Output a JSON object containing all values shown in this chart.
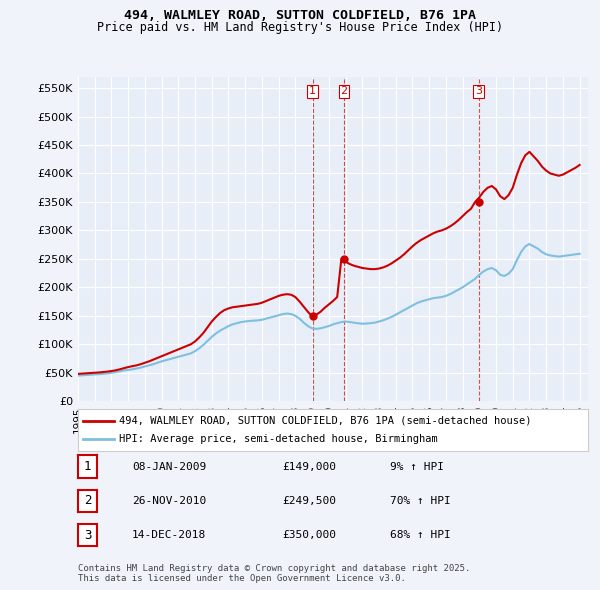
{
  "title_line1": "494, WALMLEY ROAD, SUTTON COLDFIELD, B76 1PA",
  "title_line2": "Price paid vs. HM Land Registry's House Price Index (HPI)",
  "ylabel_ticks": [
    "£0",
    "£50K",
    "£100K",
    "£150K",
    "£200K",
    "£250K",
    "£300K",
    "£350K",
    "£400K",
    "£450K",
    "£500K",
    "£550K"
  ],
  "ytick_values": [
    0,
    50000,
    100000,
    150000,
    200000,
    250000,
    300000,
    350000,
    400000,
    450000,
    500000,
    550000
  ],
  "ylim": [
    0,
    570000
  ],
  "xlim_start": 1995.0,
  "xlim_end": 2025.5,
  "background_color": "#f0f4fa",
  "plot_bg_color": "#e8eef8",
  "grid_color": "#ffffff",
  "red_line_color": "#cc0000",
  "blue_line_color": "#7fbfdf",
  "sale_marker_color": "#cc0000",
  "vline_color": "#cc0000",
  "transaction_dates_num": [
    2009.03,
    2010.91,
    2018.96
  ],
  "transaction_prices": [
    149000,
    249500,
    350000
  ],
  "transaction_labels": [
    "1",
    "2",
    "3"
  ],
  "legend_label_red": "494, WALMLEY ROAD, SUTTON COLDFIELD, B76 1PA (semi-detached house)",
  "legend_label_blue": "HPI: Average price, semi-detached house, Birmingham",
  "table_rows": [
    {
      "num": "1",
      "date": "08-JAN-2009",
      "price": "£149,000",
      "change": "9% ↑ HPI"
    },
    {
      "num": "2",
      "date": "26-NOV-2010",
      "price": "£249,500",
      "change": "70% ↑ HPI"
    },
    {
      "num": "3",
      "date": "14-DEC-2018",
      "price": "£350,000",
      "change": "68% ↑ HPI"
    }
  ],
  "footer_text": "Contains HM Land Registry data © Crown copyright and database right 2025.\nThis data is licensed under the Open Government Licence v3.0.",
  "hpi_years": [
    1995,
    1995.25,
    1995.5,
    1995.75,
    1996,
    1996.25,
    1996.5,
    1996.75,
    1997,
    1997.25,
    1997.5,
    1997.75,
    1998,
    1998.25,
    1998.5,
    1998.75,
    1999,
    1999.25,
    1999.5,
    1999.75,
    2000,
    2000.25,
    2000.5,
    2000.75,
    2001,
    2001.25,
    2001.5,
    2001.75,
    2002,
    2002.25,
    2002.5,
    2002.75,
    2003,
    2003.25,
    2003.5,
    2003.75,
    2004,
    2004.25,
    2004.5,
    2004.75,
    2005,
    2005.25,
    2005.5,
    2005.75,
    2006,
    2006.25,
    2006.5,
    2006.75,
    2007,
    2007.25,
    2007.5,
    2007.75,
    2008,
    2008.25,
    2008.5,
    2008.75,
    2009,
    2009.25,
    2009.5,
    2009.75,
    2010,
    2010.25,
    2010.5,
    2010.75,
    2011,
    2011.25,
    2011.5,
    2011.75,
    2012,
    2012.25,
    2012.5,
    2012.75,
    2013,
    2013.25,
    2013.5,
    2013.75,
    2014,
    2014.25,
    2014.5,
    2014.75,
    2015,
    2015.25,
    2015.5,
    2015.75,
    2016,
    2016.25,
    2016.5,
    2016.75,
    2017,
    2017.25,
    2017.5,
    2017.75,
    2018,
    2018.25,
    2018.5,
    2018.75,
    2019,
    2019.25,
    2019.5,
    2019.75,
    2020,
    2020.25,
    2020.5,
    2020.75,
    2021,
    2021.25,
    2021.5,
    2021.75,
    2022,
    2022.25,
    2022.5,
    2022.75,
    2023,
    2023.25,
    2023.5,
    2023.75,
    2024,
    2024.25,
    2024.5,
    2024.75,
    2025
  ],
  "hpi_values": [
    45000,
    45500,
    46000,
    46500,
    47000,
    47500,
    48200,
    49000,
    50000,
    51000,
    52500,
    54000,
    55000,
    56000,
    57500,
    59000,
    61000,
    63000,
    65000,
    67500,
    70000,
    72000,
    74000,
    76000,
    78000,
    80000,
    82000,
    84000,
    88000,
    93000,
    99000,
    106000,
    113000,
    119000,
    124000,
    128000,
    132000,
    135000,
    137000,
    139000,
    140000,
    141000,
    141500,
    142000,
    143000,
    145000,
    147000,
    149000,
    151000,
    153000,
    154000,
    153000,
    150000,
    145000,
    138000,
    132000,
    128000,
    127000,
    128000,
    130000,
    132000,
    135000,
    137000,
    139000,
    140000,
    139000,
    138000,
    137000,
    136000,
    136500,
    137000,
    138000,
    140000,
    142000,
    145000,
    148000,
    152000,
    156000,
    160000,
    164000,
    168000,
    172000,
    175000,
    177000,
    179000,
    181000,
    182000,
    183000,
    185000,
    188000,
    192000,
    196000,
    200000,
    205000,
    210000,
    215000,
    222000,
    228000,
    232000,
    234000,
    230000,
    222000,
    220000,
    224000,
    232000,
    248000,
    262000,
    272000,
    276000,
    272000,
    268000,
    262000,
    258000,
    256000,
    255000,
    254000,
    255000,
    256000,
    257000,
    258000,
    259000
  ],
  "red_years": [
    1995,
    1995.25,
    1995.5,
    1995.75,
    1996,
    1996.25,
    1996.5,
    1996.75,
    1997,
    1997.25,
    1997.5,
    1997.75,
    1998,
    1998.25,
    1998.5,
    1998.75,
    1999,
    1999.25,
    1999.5,
    1999.75,
    2000,
    2000.25,
    2000.5,
    2000.75,
    2001,
    2001.25,
    2001.5,
    2001.75,
    2002,
    2002.25,
    2002.5,
    2002.75,
    2003,
    2003.25,
    2003.5,
    2003.75,
    2004,
    2004.25,
    2004.5,
    2004.75,
    2005,
    2005.25,
    2005.5,
    2005.75,
    2006,
    2006.25,
    2006.5,
    2006.75,
    2007,
    2007.25,
    2007.5,
    2007.75,
    2008,
    2008.25,
    2008.5,
    2008.75,
    2009,
    2009.25,
    2009.5,
    2009.75,
    2010,
    2010.25,
    2010.5,
    2010.75,
    2011,
    2011.25,
    2011.5,
    2011.75,
    2012,
    2012.25,
    2012.5,
    2012.75,
    2013,
    2013.25,
    2013.5,
    2013.75,
    2014,
    2014.25,
    2014.5,
    2014.75,
    2015,
    2015.25,
    2015.5,
    2015.75,
    2016,
    2016.25,
    2016.5,
    2016.75,
    2017,
    2017.25,
    2017.5,
    2017.75,
    2018,
    2018.25,
    2018.5,
    2018.75,
    2019,
    2019.25,
    2019.5,
    2019.75,
    2020,
    2020.25,
    2020.5,
    2020.75,
    2021,
    2021.25,
    2021.5,
    2021.75,
    2022,
    2022.25,
    2022.5,
    2022.75,
    2023,
    2023.25,
    2023.5,
    2023.75,
    2024,
    2024.25,
    2024.5,
    2024.75,
    2025
  ],
  "red_values": [
    48000,
    48500,
    49000,
    49500,
    50000,
    50500,
    51200,
    52000,
    53000,
    54200,
    56000,
    58000,
    60000,
    61500,
    63000,
    65000,
    67500,
    70000,
    73000,
    76000,
    79000,
    82000,
    85000,
    88000,
    91000,
    94000,
    97000,
    100000,
    105000,
    112000,
    120000,
    130000,
    140000,
    148000,
    155000,
    160000,
    163000,
    165000,
    166000,
    167000,
    168000,
    169000,
    170000,
    171000,
    173000,
    176000,
    179000,
    182000,
    185000,
    187000,
    188000,
    187000,
    183000,
    175000,
    166000,
    157000,
    149000,
    152000,
    157000,
    164000,
    170000,
    176000,
    183000,
    249500,
    245000,
    241000,
    238000,
    236000,
    234000,
    233000,
    232000,
    232000,
    233000,
    235000,
    238000,
    242000,
    247000,
    252000,
    258000,
    265000,
    272000,
    278000,
    283000,
    287000,
    291000,
    295000,
    298000,
    300000,
    303000,
    307000,
    312000,
    318000,
    325000,
    332000,
    338000,
    350000,
    358000,
    368000,
    375000,
    378000,
    372000,
    360000,
    355000,
    362000,
    375000,
    398000,
    418000,
    432000,
    438000,
    430000,
    422000,
    412000,
    405000,
    400000,
    398000,
    396000,
    398000,
    402000,
    406000,
    410000,
    415000
  ]
}
